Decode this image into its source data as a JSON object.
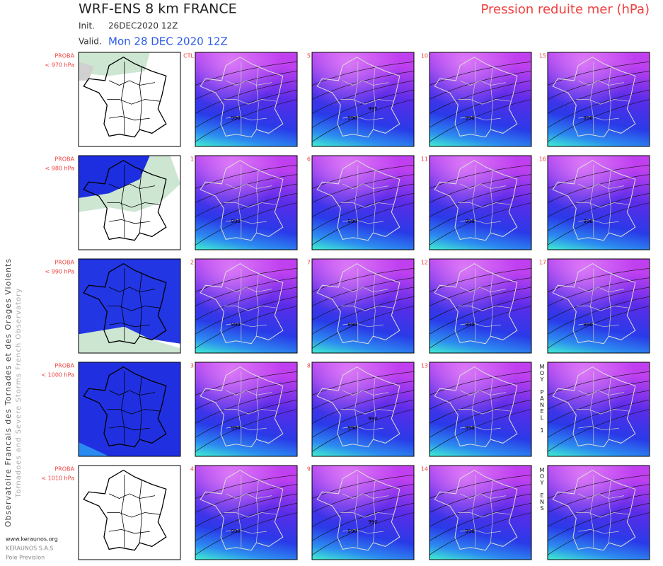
{
  "header": {
    "title": "WRF-ENS 8 km FRANCE",
    "init_label": "Init.",
    "init": "26DEC2020 12Z",
    "valid_label": "Valid.",
    "valid": "Mon 28 DEC 2020 12Z",
    "field": "Pression reduite mer (hPa)"
  },
  "side_text": [
    "Observatoire Francais des Tornades et des Orages Violents",
    "Tornadoes and Severe Storms French Observatory"
  ],
  "footer": [
    "www.keraunos.org",
    "KERAUNOS S.A.S",
    "Pole Prevision"
  ],
  "rows": [
    {
      "proba": "PROBA",
      "threshold": "< 970 hPa",
      "panels": [
        {
          "label": "CTL",
          "contours": [
            "990"
          ]
        },
        {
          "label": "5",
          "contours": [
            "990",
            "995"
          ]
        },
        {
          "label": "10",
          "contours": [
            "990"
          ]
        },
        {
          "label": "15",
          "contours": [
            "990"
          ]
        }
      ]
    },
    {
      "proba": "PROBA",
      "threshold": "< 980 hPa",
      "panels": [
        {
          "label": "1",
          "contours": [
            "990"
          ]
        },
        {
          "label": "6",
          "contours": [
            "990"
          ]
        },
        {
          "label": "11",
          "contours": [
            "990"
          ]
        },
        {
          "label": "16",
          "contours": [
            "990"
          ]
        }
      ]
    },
    {
      "proba": "PROBA",
      "threshold": "< 990 hPa",
      "panels": [
        {
          "label": "2",
          "contours": [
            "990"
          ]
        },
        {
          "label": "7",
          "contours": [
            "990"
          ]
        },
        {
          "label": "12",
          "contours": [
            "990"
          ]
        },
        {
          "label": "17",
          "contours": [
            "990"
          ]
        }
      ]
    },
    {
      "proba": "PROBA",
      "threshold": "< 1000 hPa",
      "panels": [
        {
          "label": "3",
          "contours": [
            "990"
          ]
        },
        {
          "label": "8",
          "contours": [
            "990",
            "990"
          ]
        },
        {
          "label": "13",
          "contours": [
            "990"
          ]
        },
        {
          "label": "MOY PANEL 1",
          "contours": []
        }
      ]
    },
    {
      "proba": "PROBA",
      "threshold": "< 1010 hPa",
      "panels": [
        {
          "label": "4",
          "contours": [
            "990"
          ]
        },
        {
          "label": "9",
          "contours": [
            "990",
            "990"
          ]
        },
        {
          "label": "14",
          "contours": [
            "990"
          ]
        },
        {
          "label": "MOY ENS",
          "contours": []
        }
      ]
    }
  ]
}
